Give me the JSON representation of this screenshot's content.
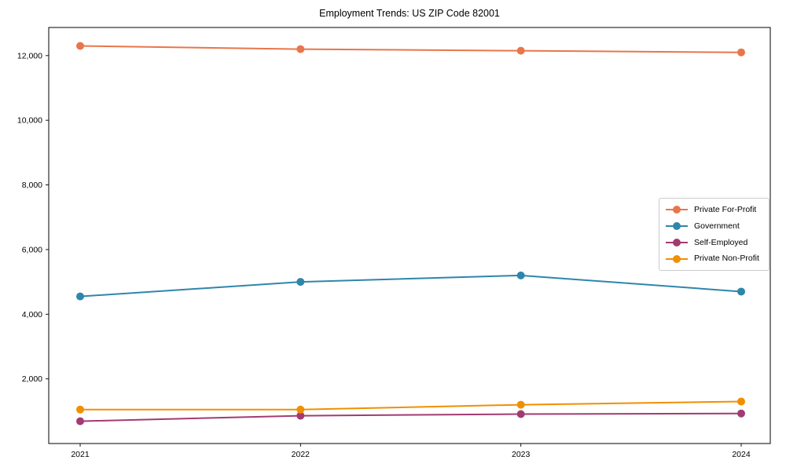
{
  "chart_data": {
    "type": "line",
    "title": "Employment Trends: US ZIP Code 82001",
    "categories": [
      "2021",
      "2022",
      "2023",
      "2024"
    ],
    "series": [
      {
        "name": "Private For-Profit",
        "color": "#E8764B",
        "values": [
          12300,
          12200,
          12150,
          12100
        ]
      },
      {
        "name": "Government",
        "color": "#2E86AB",
        "values": [
          4550,
          5000,
          5200,
          4700
        ]
      },
      {
        "name": "Self-Employed",
        "color": "#A23B72",
        "values": [
          690,
          860,
          910,
          930
        ]
      },
      {
        "name": "Private Non-Profit",
        "color": "#F18F01",
        "values": [
          1050,
          1050,
          1200,
          1300
        ]
      }
    ],
    "xlabel": "",
    "ylabel": "",
    "ylim": [
      0,
      12870
    ],
    "yticks": [
      2000,
      4000,
      6000,
      8000,
      10000,
      12000
    ],
    "ytick_labels": [
      "2,000",
      "4,000",
      "6,000",
      "8,000",
      "10,000",
      "12,000"
    ],
    "grid": false,
    "legend_position": "center-right",
    "marker": "circle",
    "axis_color": "#000000",
    "background_color": "#ffffff",
    "legend_border_color": "#cccccc"
  }
}
